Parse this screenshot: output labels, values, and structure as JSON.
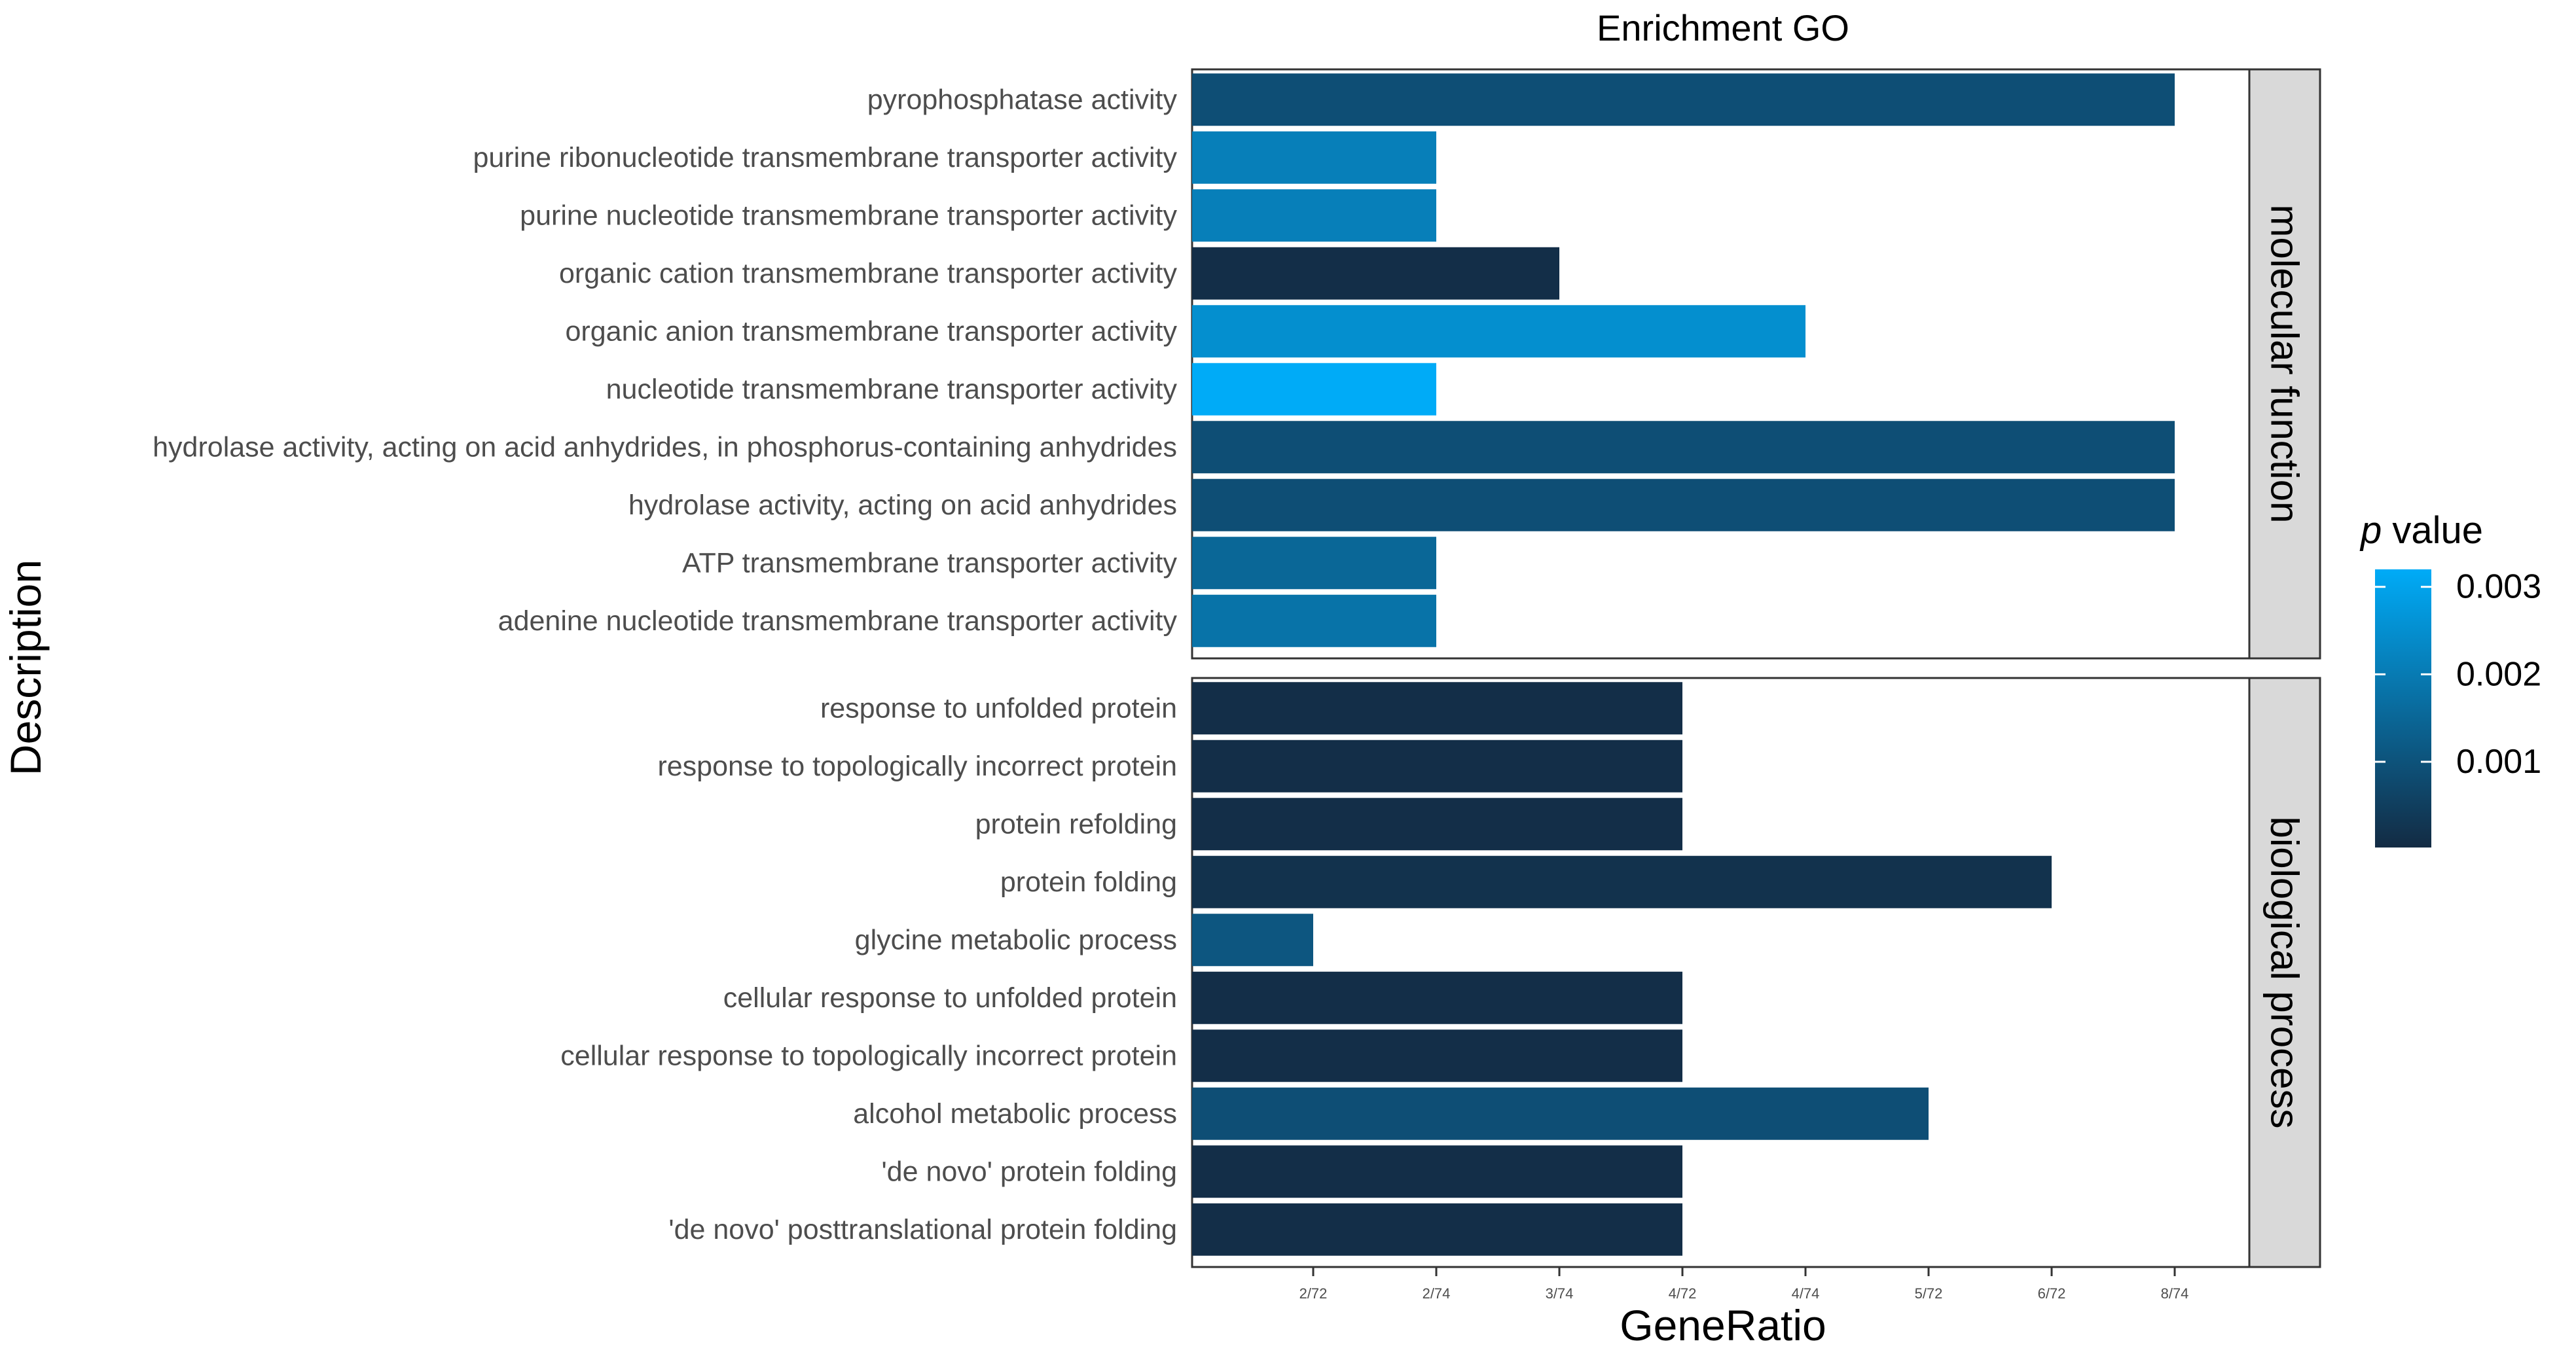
{
  "chart_data": {
    "type": "bar",
    "orientation": "horizontal",
    "title": "Enrichment GO",
    "xlabel": "GeneRatio",
    "ylabel": "Description",
    "x_tick_labels": [
      "2/72",
      "2/74",
      "3/74",
      "4/72",
      "4/74",
      "5/72",
      "6/72",
      "8/74"
    ],
    "legend": {
      "title_italic": "p",
      "title_rest": " value",
      "ticks": [
        {
          "label": "0.003",
          "value": 0.003
        },
        {
          "label": "0.002",
          "value": 0.002
        },
        {
          "label": "0.001",
          "value": 0.001
        }
      ],
      "range": [
        2e-05,
        0.0032
      ],
      "color_low": "#132B43",
      "color_high": "#00ABF7"
    },
    "facets": [
      {
        "label": "molecular function",
        "bars": [
          {
            "label": "pyrophosphatase activity",
            "x": "8/74",
            "p_value": 0.0009
          },
          {
            "label": "purine ribonucleotide transmembrane transporter activity",
            "x": "2/74",
            "p_value": 0.0021
          },
          {
            "label": "purine nucleotide transmembrane transporter activity",
            "x": "2/74",
            "p_value": 0.0021
          },
          {
            "label": "organic cation transmembrane transporter activity",
            "x": "3/74",
            "p_value": 0.0001
          },
          {
            "label": "organic anion transmembrane transporter activity",
            "x": "4/74",
            "p_value": 0.0025
          },
          {
            "label": "nucleotide transmembrane transporter activity",
            "x": "2/74",
            "p_value": 0.0032
          },
          {
            "label": "hydrolase activity, acting on acid anhydrides, in phosphorus-containing anhydrides",
            "x": "8/74",
            "p_value": 0.0009
          },
          {
            "label": "hydrolase activity, acting on acid anhydrides",
            "x": "8/74",
            "p_value": 0.0009
          },
          {
            "label": "ATP transmembrane transporter activity",
            "x": "2/74",
            "p_value": 0.0015
          },
          {
            "label": "adenine nucleotide transmembrane transporter activity",
            "x": "2/74",
            "p_value": 0.0018
          }
        ]
      },
      {
        "label": "biological process",
        "bars": [
          {
            "label": "response to unfolded protein",
            "x": "4/72",
            "p_value": 0.0001
          },
          {
            "label": "response to topologically incorrect protein",
            "x": "4/72",
            "p_value": 0.0001
          },
          {
            "label": "protein refolding",
            "x": "4/72",
            "p_value": 0.0001
          },
          {
            "label": "protein folding",
            "x": "6/72",
            "p_value": 0.0002
          },
          {
            "label": "glycine metabolic process",
            "x": "2/72",
            "p_value": 0.0011
          },
          {
            "label": "cellular response to unfolded protein",
            "x": "4/72",
            "p_value": 0.0001
          },
          {
            "label": "cellular response to topologically incorrect protein",
            "x": "4/72",
            "p_value": 0.0001
          },
          {
            "label": "alcohol metabolic process",
            "x": "5/72",
            "p_value": 0.0009
          },
          {
            "label": "'de novo' protein folding",
            "x": "4/72",
            "p_value": 0.0001
          },
          {
            "label": "'de novo' posttranslational protein folding",
            "x": "4/72",
            "p_value": 0.0001
          }
        ]
      }
    ]
  }
}
